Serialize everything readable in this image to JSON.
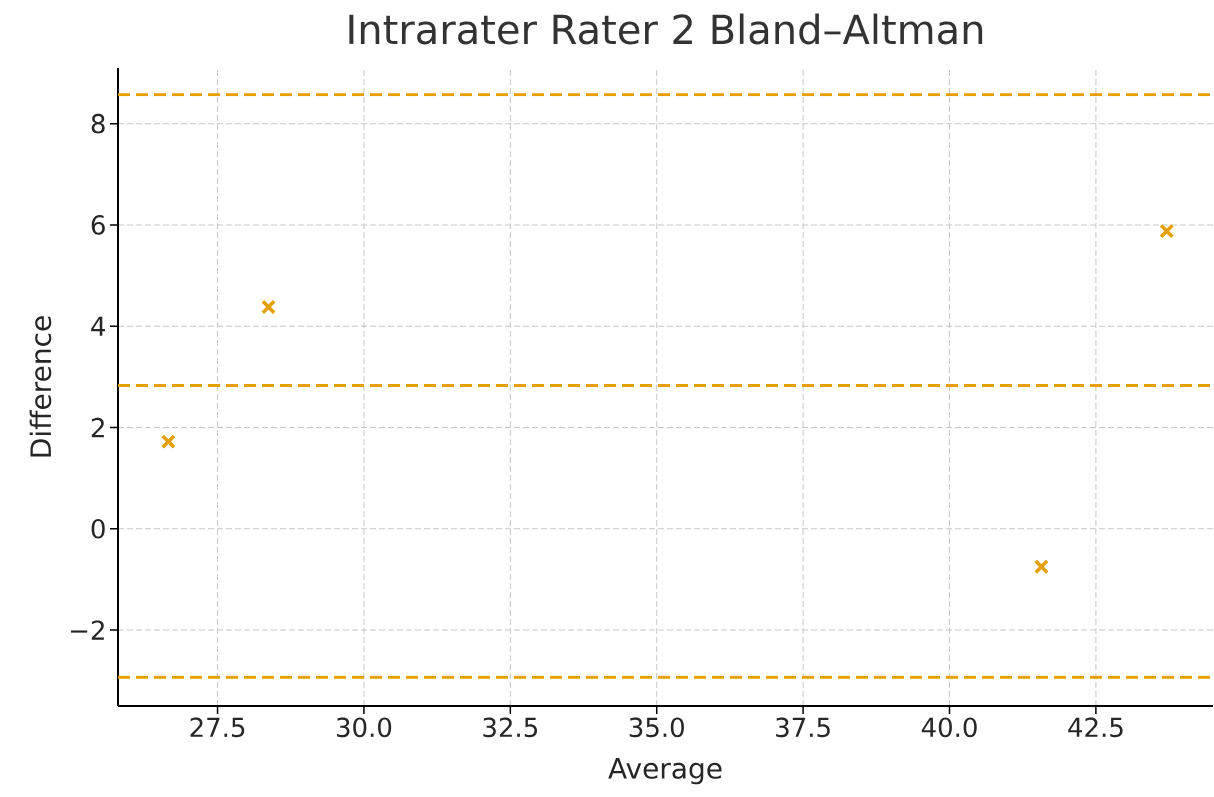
{
  "chart_data": {
    "type": "scatter",
    "title": "Intrarater Rater 2 Bland–Altman",
    "xlabel": "Average",
    "ylabel": "Difference",
    "series": [
      {
        "color": "#e69f00",
        "x": [
          26.66,
          28.37,
          41.57,
          43.71
        ],
        "values": [
          1.72,
          4.38,
          -0.75,
          5.88
        ]
      }
    ],
    "marker": "cross",
    "grid": true,
    "xlim": [
      25.8,
      44.5
    ],
    "ylim": [
      -3.5,
      9.1
    ],
    "xticks": [
      {
        "value": 27.5,
        "label": "27.5"
      },
      {
        "value": 30,
        "label": "30.0"
      },
      {
        "value": 32.5,
        "label": "32.5"
      },
      {
        "value": 35,
        "label": "35.0"
      },
      {
        "value": 37.5,
        "label": "37.5"
      },
      {
        "value": 40,
        "label": "40.0"
      },
      {
        "value": 42.5,
        "label": "42.5"
      }
    ],
    "yticks": [
      {
        "value": -2,
        "label": "−2"
      },
      {
        "value": 0,
        "label": "0"
      },
      {
        "value": 2,
        "label": "2"
      },
      {
        "value": 4,
        "label": "4"
      },
      {
        "value": 6,
        "label": "6"
      },
      {
        "value": 8,
        "label": "8"
      }
    ],
    "ref_lines": [
      {
        "axis": "y",
        "value": 8.57,
        "color": "#e69f00",
        "line_style": "dashed"
      },
      {
        "axis": "y",
        "value": 2.83,
        "color": "#e69f00",
        "line_style": "dashed"
      },
      {
        "axis": "y",
        "value": -2.93,
        "color": "#e69f00",
        "line_style": "dashed"
      }
    ]
  }
}
